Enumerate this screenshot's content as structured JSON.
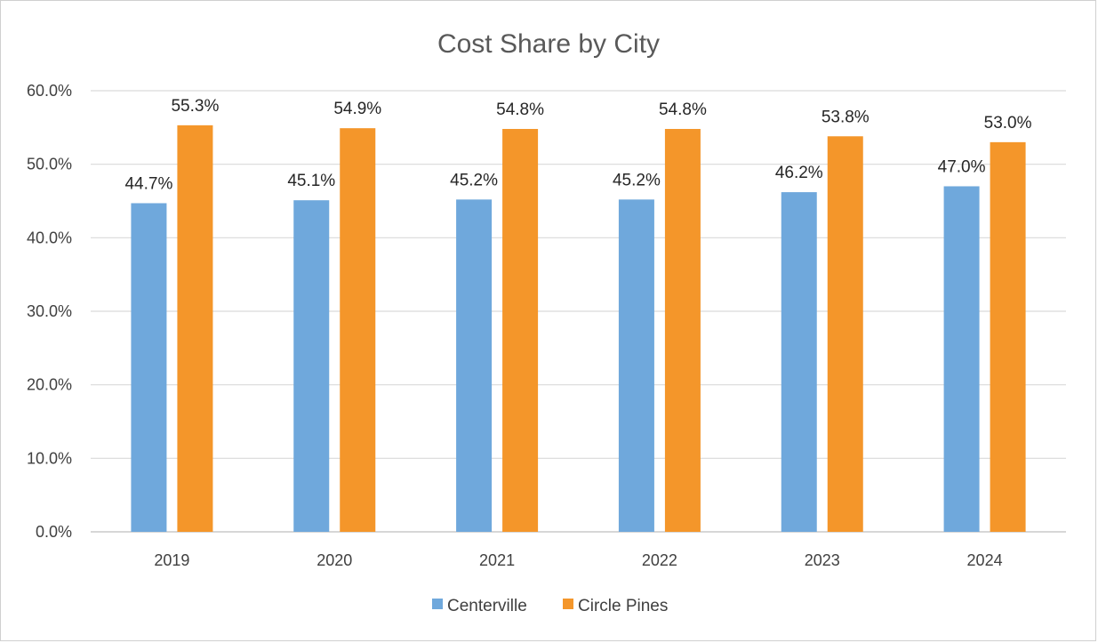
{
  "chart_data": {
    "type": "bar",
    "title": "Cost Share by City",
    "xlabel": "",
    "ylabel": "",
    "categories": [
      "2019",
      "2020",
      "2021",
      "2022",
      "2023",
      "2024"
    ],
    "series": [
      {
        "name": "Centerville",
        "color": "#6fa8dc",
        "values": [
          44.7,
          45.1,
          45.2,
          45.2,
          46.2,
          47.0
        ],
        "labels": [
          "44.7%",
          "45.1%",
          "45.2%",
          "45.2%",
          "46.2%",
          "47.0%"
        ]
      },
      {
        "name": "Circle Pines",
        "color": "#f4962a",
        "values": [
          55.3,
          54.9,
          54.8,
          54.8,
          53.8,
          53.0
        ],
        "labels": [
          "55.3%",
          "54.9%",
          "54.8%",
          "54.8%",
          "53.8%",
          "53.0%"
        ]
      }
    ],
    "ylim": [
      0,
      60
    ],
    "yticks": [
      "0.0%",
      "10.0%",
      "20.0%",
      "30.0%",
      "40.0%",
      "50.0%",
      "60.0%"
    ],
    "grid": true,
    "legend": "bottom"
  }
}
